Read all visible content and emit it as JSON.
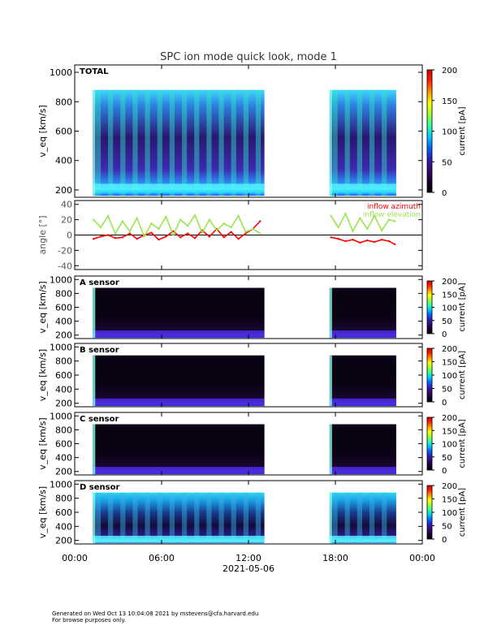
{
  "title": "SPC ion mode quick look, mode 1",
  "date_label": "2021-05-06",
  "x_ticks": [
    "00:00",
    "06:00",
    "12:00",
    "18:00",
    "00:00"
  ],
  "footer": {
    "line1": "Generated on Wed Oct 13 10:04:08 2021 by mstevens@cfa.harvard.edu",
    "line2": "For browse purposes only."
  },
  "colorbar": {
    "label": "current [pA]",
    "ticks_total": [
      "0",
      "50",
      "100",
      "150",
      "200"
    ],
    "ticks_sensor": [
      "0",
      "50",
      "100",
      "150",
      "200"
    ],
    "colors": [
      "#000000",
      "#1a0033",
      "#3b0a6b",
      "#2b1fb8",
      "#0066ff",
      "#00ccff",
      "#33ff99",
      "#99ff33",
      "#ffff00",
      "#ff9900",
      "#ff2200",
      "#cc0000"
    ]
  },
  "chart_data": [
    {
      "type": "heatmap",
      "panel_label": "TOTAL",
      "ylabel": "v_eq [km/s]",
      "y_ticks": [
        "200",
        "400",
        "600",
        "800",
        "1000"
      ],
      "ylim": [
        150,
        1050
      ],
      "xlim_hours": [
        0,
        24
      ],
      "data_intervals_hours": [
        [
          1.25,
          13.1
        ],
        [
          17.6,
          22.2
        ]
      ],
      "beam_speed_kms": 220,
      "intensity": "high"
    },
    {
      "type": "line",
      "ylabel": "angle [°]",
      "y_ticks": [
        "-40",
        "-20",
        "0",
        "20",
        "40"
      ],
      "ylim": [
        -45,
        45
      ],
      "xlim_hours": [
        0,
        24
      ],
      "zero_line": true,
      "legend": [
        {
          "name": "inflow azimuth",
          "color": "#ff0000"
        },
        {
          "name": "inflow elevation",
          "color": "#99e64d"
        }
      ],
      "series": [
        {
          "name": "inflow azimuth",
          "color": "#ff0000",
          "x": [
            1.3,
            1.8,
            2.3,
            2.8,
            3.3,
            3.8,
            4.3,
            4.8,
            5.3,
            5.8,
            6.3,
            6.8,
            7.3,
            7.8,
            8.3,
            8.8,
            9.3,
            9.8,
            10.3,
            10.8,
            11.3,
            11.8,
            12.3,
            12.8,
            17.7,
            18.2,
            18.7,
            19.2,
            19.7,
            20.2,
            20.7,
            21.2,
            21.7,
            22.1
          ],
          "y": [
            -5,
            -2,
            0,
            -4,
            -3,
            2,
            -5,
            0,
            3,
            -6,
            -2,
            5,
            -3,
            2,
            -4,
            6,
            -2,
            8,
            -3,
            4,
            -5,
            2,
            8,
            18,
            -3,
            -5,
            -8,
            -6,
            -10,
            -7,
            -9,
            -6,
            -8,
            -12
          ]
        },
        {
          "name": "inflow elevation",
          "color": "#99e64d",
          "x": [
            1.3,
            1.8,
            2.3,
            2.8,
            3.3,
            3.8,
            4.3,
            4.8,
            5.3,
            5.8,
            6.3,
            6.8,
            7.3,
            7.8,
            8.3,
            8.8,
            9.3,
            9.8,
            10.3,
            10.8,
            11.3,
            11.8,
            12.3,
            12.8,
            17.7,
            18.2,
            18.7,
            19.2,
            19.7,
            20.2,
            20.7,
            21.2,
            21.7,
            22.1
          ],
          "y": [
            20,
            10,
            25,
            2,
            18,
            5,
            22,
            -2,
            15,
            8,
            24,
            0,
            20,
            12,
            26,
            3,
            20,
            6,
            15,
            10,
            25,
            4,
            8,
            2,
            25,
            10,
            28,
            5,
            22,
            8,
            25,
            6,
            20,
            18
          ]
        }
      ]
    },
    {
      "type": "heatmap",
      "panel_label": "A sensor",
      "ylabel": "v_eq [km/s]",
      "y_ticks": [
        "200",
        "400",
        "600",
        "800",
        "1000"
      ],
      "ylim": [
        150,
        1050
      ],
      "xlim_hours": [
        0,
        24
      ],
      "data_intervals_hours": [
        [
          1.25,
          13.1
        ],
        [
          17.6,
          22.2
        ]
      ],
      "beam_speed_kms": 220,
      "intensity": "low"
    },
    {
      "type": "heatmap",
      "panel_label": "B sensor",
      "ylabel": "v_eq [km/s]",
      "y_ticks": [
        "200",
        "400",
        "600",
        "800",
        "1000"
      ],
      "ylim": [
        150,
        1050
      ],
      "xlim_hours": [
        0,
        24
      ],
      "data_intervals_hours": [
        [
          1.25,
          13.1
        ],
        [
          17.6,
          22.2
        ]
      ],
      "beam_speed_kms": 220,
      "intensity": "low"
    },
    {
      "type": "heatmap",
      "panel_label": "C sensor",
      "ylabel": "v_eq [km/s]",
      "y_ticks": [
        "200",
        "400",
        "600",
        "800",
        "1000"
      ],
      "ylim": [
        150,
        1050
      ],
      "xlim_hours": [
        0,
        24
      ],
      "data_intervals_hours": [
        [
          1.25,
          13.1
        ],
        [
          17.6,
          22.2
        ]
      ],
      "beam_speed_kms": 220,
      "intensity": "low"
    },
    {
      "type": "heatmap",
      "panel_label": "D sensor",
      "ylabel": "v_eq [km/s]",
      "y_ticks": [
        "200",
        "400",
        "600",
        "800",
        "1000"
      ],
      "ylim": [
        150,
        1050
      ],
      "xlim_hours": [
        0,
        24
      ],
      "data_intervals_hours": [
        [
          1.25,
          13.1
        ],
        [
          17.6,
          22.2
        ]
      ],
      "beam_speed_kms": 220,
      "intensity": "medium"
    }
  ]
}
